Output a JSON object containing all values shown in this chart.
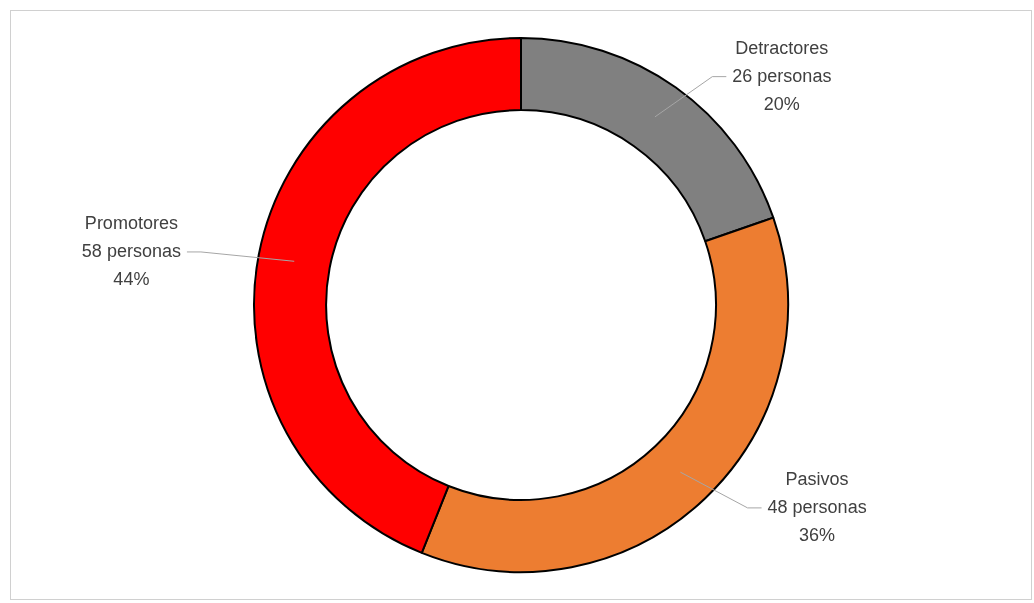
{
  "chart_data": {
    "type": "donut",
    "categories": [
      "Detractores",
      "Pasivos",
      "Promotores"
    ],
    "values": [
      26,
      48,
      58
    ],
    "colors": [
      "#808080",
      "#ed7d31",
      "#ff0000"
    ],
    "value_labels": [
      "26 personas\n20%",
      "48 personas\n36%",
      "58 personas\n44%"
    ],
    "legend": false
  }
}
